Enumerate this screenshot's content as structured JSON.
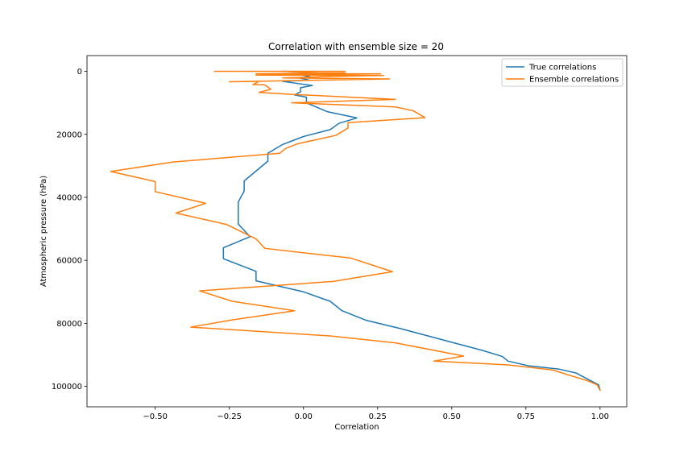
{
  "chart_data": {
    "type": "line",
    "title": "Correlation with ensemble size = 20",
    "xlabel": "Correlation",
    "ylabel": "Atmospheric pressure (hPa)",
    "xlim": [
      -0.73,
      1.09
    ],
    "ylim": [
      106500,
      -5000
    ],
    "y_inverted": true,
    "xticks": [
      -0.5,
      -0.25,
      0.0,
      0.25,
      0.5,
      0.75,
      1.0
    ],
    "xtick_labels": [
      "−0.50",
      "−0.25",
      "0.00",
      "0.25",
      "0.50",
      "0.75",
      "1.00"
    ],
    "yticks": [
      0,
      20000,
      40000,
      60000,
      80000,
      100000
    ],
    "ytick_labels": [
      "0",
      "20000",
      "40000",
      "60000",
      "80000",
      "100000"
    ],
    "grid": false,
    "legend_position": "top-right",
    "series": [
      {
        "name": "True correlations",
        "color": "#1f77b4",
        "points": [
          [
            -0.07,
            0
          ],
          [
            0.05,
            500
          ],
          [
            -0.02,
            1000
          ],
          [
            0.02,
            1600
          ],
          [
            -0.01,
            2200
          ],
          [
            0.02,
            2800
          ],
          [
            -0.07,
            3200
          ],
          [
            0.03,
            4500
          ],
          [
            -0.01,
            5200
          ],
          [
            -0.01,
            6500
          ],
          [
            -0.03,
            7500
          ],
          [
            0.01,
            8200
          ],
          [
            0.01,
            10000
          ],
          [
            0.08,
            12800
          ],
          [
            0.18,
            14800
          ],
          [
            0.12,
            16500
          ],
          [
            0.09,
            18500
          ],
          [
            0.0,
            20700
          ],
          [
            -0.07,
            23200
          ],
          [
            -0.12,
            26000
          ],
          [
            -0.12,
            28500
          ],
          [
            -0.2,
            34800
          ],
          [
            -0.2,
            38000
          ],
          [
            -0.22,
            41500
          ],
          [
            -0.22,
            44800
          ],
          [
            -0.22,
            48500
          ],
          [
            -0.18,
            52500
          ],
          [
            -0.27,
            56000
          ],
          [
            -0.27,
            59500
          ],
          [
            -0.16,
            63500
          ],
          [
            -0.16,
            66500
          ],
          [
            0.0,
            70000
          ],
          [
            0.09,
            73000
          ],
          [
            0.13,
            76000
          ],
          [
            0.21,
            79000
          ],
          [
            0.32,
            81500
          ],
          [
            0.5,
            86000
          ],
          [
            0.6,
            88500
          ],
          [
            0.67,
            90500
          ],
          [
            0.69,
            92000
          ],
          [
            0.76,
            93500
          ],
          [
            0.86,
            94500
          ],
          [
            0.92,
            95800
          ],
          [
            0.97,
            98300
          ],
          [
            0.995,
            99500
          ],
          [
            1.0,
            101200
          ]
        ]
      },
      {
        "name": "Ensemble correlations",
        "color": "#ff7f0e",
        "points": [
          [
            -0.3,
            0
          ],
          [
            0.14,
            0
          ],
          [
            -0.07,
            0
          ],
          [
            0.05,
            500
          ],
          [
            0.14,
            500
          ],
          [
            -0.16,
            800
          ],
          [
            0.26,
            800
          ],
          [
            -0.16,
            1200
          ],
          [
            0.27,
            1300
          ],
          [
            0.11,
            1600
          ],
          [
            -0.07,
            2100
          ],
          [
            0.29,
            2400
          ],
          [
            -0.25,
            3300
          ],
          [
            -0.15,
            3200
          ],
          [
            -0.17,
            4200
          ],
          [
            -0.13,
            4300
          ],
          [
            -0.11,
            5700
          ],
          [
            -0.15,
            6700
          ],
          [
            -0.04,
            7300
          ],
          [
            0.31,
            8900
          ],
          [
            -0.04,
            10000
          ],
          [
            0.31,
            11300
          ],
          [
            0.37,
            12500
          ],
          [
            0.41,
            14700
          ],
          [
            0.15,
            16300
          ],
          [
            0.15,
            18000
          ],
          [
            0.11,
            20300
          ],
          [
            -0.02,
            23000
          ],
          [
            -0.06,
            24500
          ],
          [
            -0.08,
            26000
          ],
          [
            -0.44,
            28800
          ],
          [
            -0.65,
            31800
          ],
          [
            -0.5,
            35000
          ],
          [
            -0.5,
            38200
          ],
          [
            -0.33,
            41900
          ],
          [
            -0.43,
            45000
          ],
          [
            -0.26,
            48600
          ],
          [
            -0.16,
            53200
          ],
          [
            -0.13,
            56200
          ],
          [
            0.16,
            59300
          ],
          [
            0.3,
            63600
          ],
          [
            0.1,
            66700
          ],
          [
            -0.35,
            69700
          ],
          [
            -0.24,
            73000
          ],
          [
            -0.03,
            76000
          ],
          [
            -0.24,
            78900
          ],
          [
            -0.38,
            81200
          ],
          [
            0.09,
            84000
          ],
          [
            0.31,
            86200
          ],
          [
            0.54,
            90400
          ],
          [
            0.44,
            92000
          ],
          [
            0.69,
            93200
          ],
          [
            0.84,
            94800
          ],
          [
            0.87,
            95700
          ],
          [
            0.96,
            98300
          ],
          [
            0.99,
            99500
          ],
          [
            1.0,
            101200
          ]
        ]
      }
    ]
  }
}
